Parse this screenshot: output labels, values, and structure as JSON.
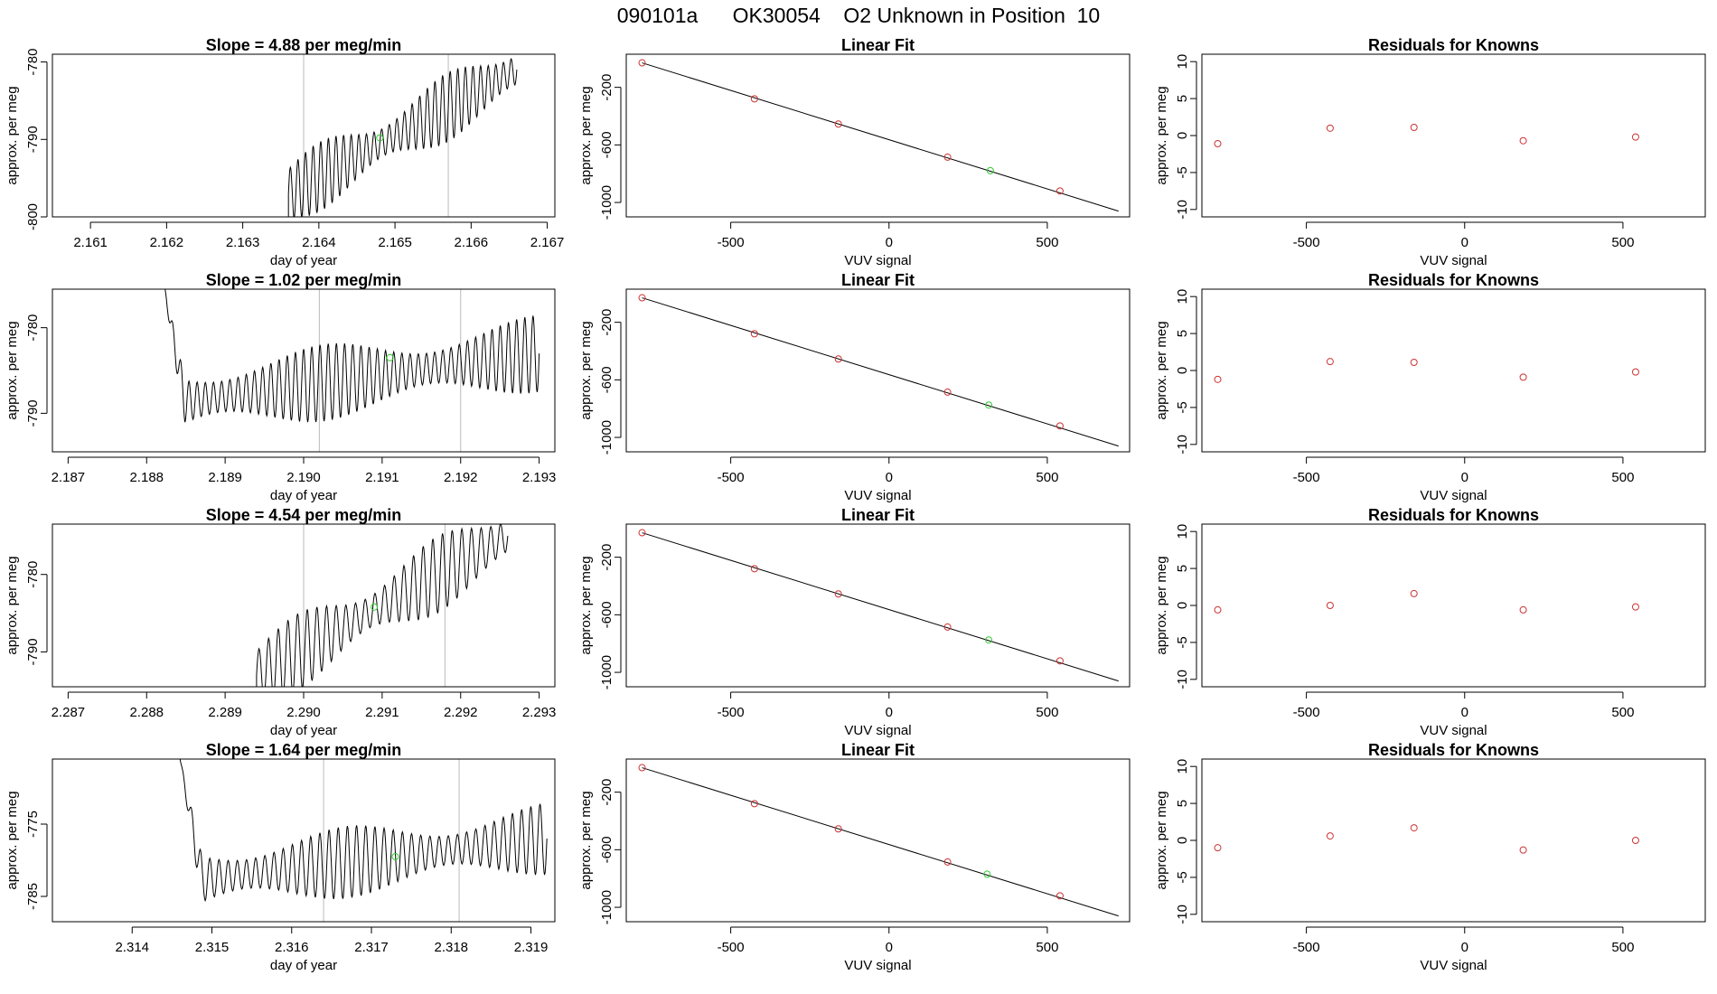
{
  "header": {
    "title": "090101a      OK30054    O2 Unknown in Position  10"
  },
  "colors": {
    "axis": "#000000",
    "trace": "#000000",
    "marker_known": "#cc3333",
    "marker_unknown": "#33cc33",
    "vline": "#bbbbbb"
  },
  "chart_data": [
    {
      "type": "line",
      "panel": "time-series",
      "row": 1,
      "title": "Slope =  4.88  per meg/min",
      "xlabel": "day of year",
      "ylabel": "approx. per meg",
      "xlim": [
        2.1605,
        2.1671
      ],
      "ylim": [
        -800,
        -779
      ],
      "xticks": [
        2.161,
        2.162,
        2.163,
        2.164,
        2.165,
        2.166,
        2.167
      ],
      "xtick_labels": [
        "2.161",
        "2.162",
        "2.163",
        "2.164",
        "2.165",
        "2.166",
        "2.167"
      ],
      "yticks": [
        -800,
        -790,
        -780
      ],
      "ytick_labels": [
        "-800",
        "-790",
        "-780"
      ],
      "vlines": [
        2.1638,
        2.1657
      ],
      "unknown_point": {
        "x": 2.1648,
        "y": -789.8
      },
      "trace": {
        "start": 2.1636,
        "end": 2.1666,
        "cycles": 30,
        "base_start": -797,
        "base_end": -781,
        "amp": 4.5,
        "pre_start": 2.1605,
        "pre_value": -800.5
      }
    },
    {
      "type": "scatter",
      "panel": "linear-fit",
      "row": 1,
      "title": "Linear Fit",
      "xlabel": "VUV signal",
      "ylabel": "approx. per meg",
      "xlim": [
        -830,
        760
      ],
      "ylim": [
        -1100,
        30
      ],
      "xticks": [
        -500,
        0,
        500
      ],
      "xtick_labels": [
        "-500",
        "0",
        "500"
      ],
      "yticks": [
        -1000,
        -600,
        -200
      ],
      "ytick_labels": [
        "-1000",
        "-600",
        "-200"
      ],
      "line": {
        "x": [
          -780,
          725
        ],
        "y": [
          -30,
          -1060
        ]
      },
      "known_points": [
        {
          "x": -780,
          "y": -30
        },
        {
          "x": -425,
          "y": -280
        },
        {
          "x": -160,
          "y": -455
        },
        {
          "x": 185,
          "y": -685
        },
        {
          "x": 540,
          "y": -920
        }
      ],
      "unknown_point": {
        "x": 320,
        "y": -779
      }
    },
    {
      "type": "scatter",
      "panel": "residuals",
      "row": 1,
      "title": "Residuals for Knowns",
      "xlabel": "VUV signal",
      "ylabel": "approx. per meg",
      "xlim": [
        -830,
        760
      ],
      "ylim": [
        -11,
        11
      ],
      "xticks": [
        -500,
        0,
        500
      ],
      "xtick_labels": [
        "-500",
        "0",
        "500"
      ],
      "yticks": [
        -10,
        -5,
        0,
        5,
        10
      ],
      "ytick_labels": [
        "-10",
        "-5",
        "0",
        "5",
        "10"
      ],
      "points": [
        {
          "x": -780,
          "y": -1.1
        },
        {
          "x": -425,
          "y": 1.0
        },
        {
          "x": -160,
          "y": 1.1
        },
        {
          "x": 185,
          "y": -0.7
        },
        {
          "x": 540,
          "y": -0.2
        }
      ]
    },
    {
      "type": "line",
      "panel": "time-series",
      "row": 2,
      "title": "Slope =  1.02  per meg/min",
      "xlabel": "day of year",
      "ylabel": "approx. per meg",
      "xlim": [
        2.1868,
        2.1932
      ],
      "ylim": [
        -794.5,
        -775.5
      ],
      "xticks": [
        2.187,
        2.188,
        2.189,
        2.19,
        2.191,
        2.192,
        2.193
      ],
      "xtick_labels": [
        "2.187",
        "2.188",
        "2.189",
        "2.190",
        "2.191",
        "2.192",
        "2.193"
      ],
      "yticks": [
        -790,
        -780
      ],
      "ytick_labels": [
        "-790",
        "-780"
      ],
      "vlines": [
        2.1902,
        2.192
      ],
      "unknown_point": {
        "x": 2.1911,
        "y": -783.5
      },
      "trace": {
        "start": 2.1882,
        "end": 2.193,
        "cycles": 46,
        "base_start": -789,
        "base_end": -783,
        "amp": 4.5,
        "spike_from": -774
      }
    },
    {
      "type": "scatter",
      "panel": "linear-fit",
      "row": 2,
      "title": "Linear Fit",
      "xlabel": "VUV signal",
      "ylabel": "approx. per meg",
      "xlim": [
        -830,
        760
      ],
      "ylim": [
        -1100,
        30
      ],
      "xticks": [
        -500,
        0,
        500
      ],
      "xtick_labels": [
        "-500",
        "0",
        "500"
      ],
      "yticks": [
        -1000,
        -600,
        -200
      ],
      "ytick_labels": [
        "-1000",
        "-600",
        "-200"
      ],
      "line": {
        "x": [
          -780,
          725
        ],
        "y": [
          -30,
          -1060
        ]
      },
      "known_points": [
        {
          "x": -780,
          "y": -30
        },
        {
          "x": -425,
          "y": -280
        },
        {
          "x": -160,
          "y": -455
        },
        {
          "x": 185,
          "y": -685
        },
        {
          "x": 540,
          "y": -920
        }
      ],
      "unknown_point": {
        "x": 315,
        "y": -775
      }
    },
    {
      "type": "scatter",
      "panel": "residuals",
      "row": 2,
      "title": "Residuals for Knowns",
      "xlabel": "VUV signal",
      "ylabel": "approx. per meg",
      "xlim": [
        -830,
        760
      ],
      "ylim": [
        -11,
        11
      ],
      "xticks": [
        -500,
        0,
        500
      ],
      "xtick_labels": [
        "-500",
        "0",
        "500"
      ],
      "yticks": [
        -10,
        -5,
        0,
        5,
        10
      ],
      "ytick_labels": [
        "-10",
        "-5",
        "0",
        "5",
        "10"
      ],
      "points": [
        {
          "x": -780,
          "y": -1.2
        },
        {
          "x": -425,
          "y": 1.2
        },
        {
          "x": -160,
          "y": 1.1
        },
        {
          "x": 185,
          "y": -0.9
        },
        {
          "x": 540,
          "y": -0.2
        }
      ]
    },
    {
      "type": "line",
      "panel": "time-series",
      "row": 3,
      "title": "Slope =  4.54  per meg/min",
      "xlabel": "day of year",
      "ylabel": "approx. per meg",
      "xlim": [
        2.2868,
        2.2932
      ],
      "ylim": [
        -794.5,
        -773.5
      ],
      "xticks": [
        2.287,
        2.288,
        2.289,
        2.29,
        2.291,
        2.292,
        2.293
      ],
      "xtick_labels": [
        "2.287",
        "2.288",
        "2.289",
        "2.290",
        "2.291",
        "2.292",
        "2.293"
      ],
      "yticks": [
        -790,
        -780
      ],
      "ytick_labels": [
        "-790",
        "-780"
      ],
      "vlines": [
        2.29,
        2.2918
      ],
      "unknown_point": {
        "x": 2.2909,
        "y": -784.2
      },
      "trace": {
        "start": 2.2894,
        "end": 2.2926,
        "cycles": 26,
        "base_start": -793,
        "base_end": -775,
        "amp": 5,
        "pre_start": 2.2868,
        "pre_value": -795
      }
    },
    {
      "type": "scatter",
      "panel": "linear-fit",
      "row": 3,
      "title": "Linear Fit",
      "xlabel": "VUV signal",
      "ylabel": "approx. per meg",
      "xlim": [
        -830,
        760
      ],
      "ylim": [
        -1100,
        30
      ],
      "xticks": [
        -500,
        0,
        500
      ],
      "xtick_labels": [
        "-500",
        "0",
        "500"
      ],
      "yticks": [
        -1000,
        -600,
        -200
      ],
      "ytick_labels": [
        "-1000",
        "-600",
        "-200"
      ],
      "line": {
        "x": [
          -780,
          725
        ],
        "y": [
          -30,
          -1060
        ]
      },
      "known_points": [
        {
          "x": -780,
          "y": -30
        },
        {
          "x": -425,
          "y": -280
        },
        {
          "x": -160,
          "y": -455
        },
        {
          "x": 185,
          "y": -685
        },
        {
          "x": 540,
          "y": -920
        }
      ],
      "unknown_point": {
        "x": 315,
        "y": -775
      }
    },
    {
      "type": "scatter",
      "panel": "residuals",
      "row": 3,
      "title": "Residuals for Knowns",
      "xlabel": "VUV signal",
      "ylabel": "approx. per meg",
      "xlim": [
        -830,
        760
      ],
      "ylim": [
        -11,
        11
      ],
      "xticks": [
        -500,
        0,
        500
      ],
      "xtick_labels": [
        "-500",
        "0",
        "500"
      ],
      "yticks": [
        -10,
        -5,
        0,
        5,
        10
      ],
      "ytick_labels": [
        "-10",
        "-5",
        "0",
        "5",
        "10"
      ],
      "points": [
        {
          "x": -780,
          "y": -0.6
        },
        {
          "x": -425,
          "y": 0.0
        },
        {
          "x": -160,
          "y": 1.6
        },
        {
          "x": 185,
          "y": -0.6
        },
        {
          "x": 540,
          "y": -0.2
        }
      ]
    },
    {
      "type": "line",
      "panel": "time-series",
      "row": 4,
      "title": "Slope =  1.64  per meg/min",
      "xlabel": "day of year",
      "ylabel": "approx. per meg",
      "xlim": [
        2.313,
        2.3193
      ],
      "ylim": [
        -788.5,
        -766
      ],
      "xticks": [
        2.314,
        2.315,
        2.316,
        2.317,
        2.318,
        2.319
      ],
      "xtick_labels": [
        "2.314",
        "2.315",
        "2.316",
        "2.317",
        "2.318",
        "2.319"
      ],
      "yticks": [
        -785,
        -775
      ],
      "ytick_labels": [
        "-785",
        "-775"
      ],
      "vlines": [
        2.3164,
        2.3181
      ],
      "unknown_point": {
        "x": 2.3173,
        "y": -779.5
      },
      "trace": {
        "start": 2.3146,
        "end": 2.3192,
        "cycles": 40,
        "base_start": -783,
        "base_end": -777,
        "amp": 5,
        "spike_from": -766
      }
    },
    {
      "type": "scatter",
      "panel": "linear-fit",
      "row": 4,
      "title": "Linear Fit",
      "xlabel": "VUV signal",
      "ylabel": "approx. per meg",
      "xlim": [
        -830,
        760
      ],
      "ylim": [
        -1100,
        30
      ],
      "xticks": [
        -500,
        0,
        500
      ],
      "xtick_labels": [
        "-500",
        "0",
        "500"
      ],
      "yticks": [
        -1000,
        -600,
        -200
      ],
      "ytick_labels": [
        "-1000",
        "-600",
        "-200"
      ],
      "line": {
        "x": [
          -780,
          725
        ],
        "y": [
          -30,
          -1060
        ]
      },
      "known_points": [
        {
          "x": -780,
          "y": -30
        },
        {
          "x": -425,
          "y": -280
        },
        {
          "x": -160,
          "y": -455
        },
        {
          "x": 185,
          "y": -685
        },
        {
          "x": 540,
          "y": -920
        }
      ],
      "unknown_point": {
        "x": 310,
        "y": -770
      }
    },
    {
      "type": "scatter",
      "panel": "residuals",
      "row": 4,
      "title": "Residuals for Knowns",
      "xlabel": "VUV signal",
      "ylabel": "approx. per meg",
      "xlim": [
        -830,
        760
      ],
      "ylim": [
        -11,
        11
      ],
      "xticks": [
        -500,
        0,
        500
      ],
      "xtick_labels": [
        "-500",
        "0",
        "500"
      ],
      "yticks": [
        -10,
        -5,
        0,
        5,
        10
      ],
      "ytick_labels": [
        "-10",
        "-5",
        "0",
        "5",
        "10"
      ],
      "points": [
        {
          "x": -780,
          "y": -1.0
        },
        {
          "x": -425,
          "y": 0.6
        },
        {
          "x": -160,
          "y": 1.7
        },
        {
          "x": 185,
          "y": -1.3
        },
        {
          "x": 540,
          "y": 0.0
        }
      ]
    }
  ]
}
